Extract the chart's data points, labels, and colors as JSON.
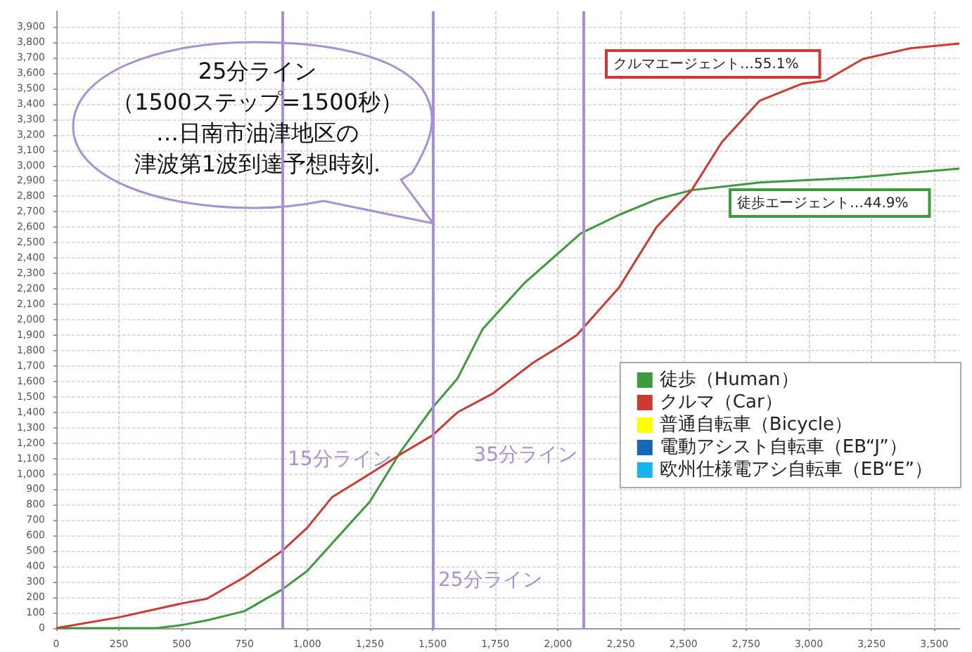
{
  "chart_data": {
    "type": "line",
    "annotations": [
      "25分ライン",
      "（1500ステップ=1500秒）",
      "…日南市油津地区の",
      "津波第1波到達予想時刻.",
      "クルマエージェント…55.1%",
      "徒歩エージェント…44.9%"
    ],
    "series": [
      {
        "name": "徒歩（Human）",
        "color": "#3d9a3d",
        "x": [
          0,
          400,
          500,
          600,
          750,
          900,
          1000,
          1100,
          1250,
          1375,
          1500,
          1600,
          1700,
          1868,
          2091,
          2244,
          2393,
          2533,
          2804,
          3178,
          3600
        ],
        "values": [
          0,
          0,
          20,
          50,
          110,
          250,
          370,
          550,
          820,
          1150,
          1430,
          1620,
          1940,
          2240,
          2560,
          2680,
          2780,
          2840,
          2890,
          2920,
          2980
        ]
      },
      {
        "name": "クルマ（Car）",
        "color": "#cc3b33",
        "x": [
          0,
          250,
          500,
          600,
          750,
          900,
          1000,
          1100,
          1250,
          1375,
          1500,
          1600,
          1739,
          1900,
          2000,
          2075,
          2244,
          2393,
          2533,
          2653,
          2804,
          2973,
          3066,
          3215,
          3404,
          3600
        ],
        "values": [
          0,
          70,
          160,
          190,
          330,
          500,
          650,
          850,
          1000,
          1130,
          1250,
          1400,
          1520,
          1720,
          1820,
          1900,
          2210,
          2600,
          2840,
          3150,
          3420,
          3530,
          3550,
          3690,
          3760,
          3790
        ]
      },
      {
        "name": "普通自転車（Bicycle）",
        "color": "#ffff00"
      },
      {
        "name": "電動アシスト自転車（EB“J”）",
        "color": "#1468b4"
      },
      {
        "name": "欧州仕様電アシ自転車（EB“E”）",
        "color": "#16b4ec"
      }
    ],
    "xlim": [
      0,
      3600
    ],
    "xticks": [
      0,
      250,
      500,
      750,
      {
        "value": 1000,
        "label": "1,000"
      },
      {
        "value": 1250,
        "label": "1,250"
      },
      {
        "value": 1500,
        "label": "1,500"
      },
      {
        "value": 1750,
        "label": "1,750"
      },
      {
        "value": 2000,
        "label": "2,000"
      },
      {
        "value": 2250,
        "label": "2,250"
      },
      {
        "value": 2500,
        "label": "2,500"
      },
      {
        "value": 2750,
        "label": "2,750"
      },
      {
        "value": 3000,
        "label": "3,000"
      },
      {
        "value": 3250,
        "label": "3,250"
      },
      {
        "value": 3500,
        "label": "3,500"
      }
    ],
    "ylim": [
      0,
      4000
    ],
    "yticks": [
      0,
      100,
      200,
      300,
      400,
      500,
      600,
      700,
      800,
      900,
      {
        "value": 1000,
        "label": "1,000"
      },
      {
        "value": 1100,
        "label": "1,100"
      },
      {
        "value": 1200,
        "label": "1,200"
      },
      {
        "value": 1300,
        "label": "1,300"
      },
      {
        "value": 1400,
        "label": "1,400"
      },
      {
        "value": 1500,
        "label": "1,500"
      },
      {
        "value": 1600,
        "label": "1,600"
      },
      {
        "value": 1700,
        "label": "1,700"
      },
      {
        "value": 1800,
        "label": "1,800"
      },
      {
        "value": 1900,
        "label": "1,900"
      },
      {
        "value": 2000,
        "label": "2,000"
      },
      {
        "value": 2100,
        "label": "2,100"
      },
      {
        "value": 2200,
        "label": "2,200"
      },
      {
        "value": 2300,
        "label": "2,300"
      },
      {
        "value": 2400,
        "label": "2,400"
      },
      {
        "value": 2500,
        "label": "2,500"
      },
      {
        "value": 2600,
        "label": "2,600"
      },
      {
        "value": 2700,
        "label": "2,700"
      },
      {
        "value": 2800,
        "label": "2,800"
      },
      {
        "value": 2900,
        "label": "2,900"
      },
      {
        "value": 3000,
        "label": "3,000"
      },
      {
        "value": 3100,
        "label": "3,100"
      },
      {
        "value": 3200,
        "label": "3,200"
      },
      {
        "value": 3300,
        "label": "3,300"
      },
      {
        "value": 3400,
        "label": "3,400"
      },
      {
        "value": 3500,
        "label": "3,500"
      },
      {
        "value": 3600,
        "label": "3,600"
      },
      {
        "value": 3700,
        "label": "3,700"
      },
      {
        "value": 3800,
        "label": "3,800"
      },
      {
        "value": 3900,
        "label": "3,900"
      }
    ],
    "ref_lines": [
      {
        "axis": "x",
        "value": 900,
        "label": "15分ライン",
        "color": "#a98fd8"
      },
      {
        "axis": "x",
        "value": 1500,
        "label": "25分ライン",
        "color": "#a98fd8"
      },
      {
        "axis": "x",
        "value": 2100,
        "label": "35分ライン",
        "color": "#a98fd8"
      }
    ],
    "grid": true,
    "legend": "right",
    "marker": "none",
    "line_style": "solid"
  }
}
